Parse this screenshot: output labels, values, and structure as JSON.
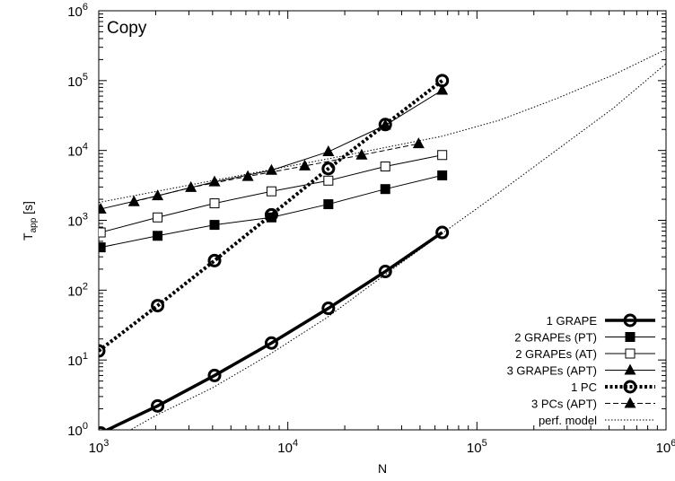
{
  "chart_data": {
    "type": "line",
    "title": "Copy",
    "xlabel": "N",
    "ylabel_main": "T",
    "ylabel_sub": "app",
    "ylabel_unit": " [s]",
    "xscale": "log",
    "yscale": "log",
    "xlim": [
      1000,
      1000000
    ],
    "ylim": [
      1,
      1000000
    ],
    "xticks": [
      {
        "value": 1000,
        "base": "10",
        "exp": "3"
      },
      {
        "value": 10000,
        "base": "10",
        "exp": "4"
      },
      {
        "value": 100000,
        "base": "10",
        "exp": "5"
      },
      {
        "value": 1000000,
        "base": "10",
        "exp": "6"
      }
    ],
    "yticks": [
      {
        "value": 1,
        "base": "10",
        "exp": "0"
      },
      {
        "value": 10,
        "base": "10",
        "exp": "1"
      },
      {
        "value": 100,
        "base": "10",
        "exp": "2"
      },
      {
        "value": 1000,
        "base": "10",
        "exp": "3"
      },
      {
        "value": 10000,
        "base": "10",
        "exp": "4"
      },
      {
        "value": 100000,
        "base": "10",
        "exp": "5"
      },
      {
        "value": 1000000,
        "base": "10",
        "exp": "6"
      }
    ],
    "grid": false,
    "legend_position": "bottom-right",
    "series": [
      {
        "name": "1 GRAPE",
        "style": "thick-solid",
        "marker": "circle-open",
        "x": [
          1024,
          2048,
          4096,
          8192,
          16384,
          32768,
          65536
        ],
        "y": [
          0.9,
          2.2,
          6.0,
          17.5,
          55,
          185,
          670
        ]
      },
      {
        "name": "2 GRAPEs (PT)",
        "style": "solid",
        "marker": "square-filled",
        "x": [
          1024,
          2048,
          4096,
          8192,
          16384,
          32768,
          65536
        ],
        "y": [
          410,
          600,
          860,
          1100,
          1700,
          2800,
          4400
        ]
      },
      {
        "name": "2 GRAPEs (AT)",
        "style": "solid",
        "marker": "square-open",
        "x": [
          1024,
          2048,
          4096,
          8192,
          16384,
          32768,
          65536
        ],
        "y": [
          670,
          1100,
          1750,
          2600,
          3700,
          5900,
          8600
        ]
      },
      {
        "name": "3 GRAPEs (APT)",
        "style": "solid",
        "marker": "triangle-filled",
        "x": [
          1024,
          2048,
          4096,
          8192,
          16384,
          32768,
          65536
        ],
        "y": [
          1450,
          2250,
          3550,
          5200,
          9600,
          23000,
          73000
        ]
      },
      {
        "name": "1 PC",
        "style": "thick-dotted",
        "marker": "circle-open",
        "x": [
          1000,
          2048,
          4096,
          8192,
          16384,
          32768,
          65536
        ],
        "y": [
          13.5,
          60,
          265,
          1200,
          5500,
          23500,
          100000
        ]
      },
      {
        "name": "3 PCs (APT)",
        "style": "dashed",
        "marker": "triangle-filled",
        "x": [
          1536,
          3072,
          6144,
          12288,
          24576,
          49152
        ],
        "y": [
          1850,
          2950,
          4250,
          6000,
          8600,
          12500
        ]
      },
      {
        "name": "perf. model",
        "style": "dotted",
        "marker": "none",
        "x": [
          1000,
          2000,
          4000,
          8000,
          16000,
          32000,
          65536,
          131072,
          262144,
          524288,
          1000000
        ],
        "y": [
          0.55,
          1.6,
          4.0,
          12,
          40,
          160,
          650,
          2500,
          10000,
          40000,
          175000
        ]
      },
      {
        "name": "",
        "style": "dotted",
        "marker": "none",
        "x": [
          1000,
          4000,
          16000,
          65536,
          131072,
          262144,
          524288,
          1000000
        ],
        "y": [
          1800,
          3700,
          7500,
          16000,
          27000,
          55000,
          120000,
          280000
        ]
      }
    ]
  }
}
